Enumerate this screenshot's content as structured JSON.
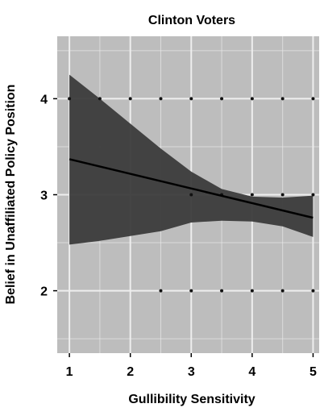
{
  "chart_data": {
    "type": "line",
    "title": "Clinton Voters",
    "xlabel": "Gullibility Sensitivity",
    "ylabel": "Belief in Unaffiliated Policy Position",
    "xlim": [
      0.8,
      5.1
    ],
    "ylim": [
      1.35,
      4.65
    ],
    "x_ticks": [
      "1",
      "2",
      "3",
      "4",
      "5"
    ],
    "y_ticks": [
      "2",
      "3",
      "4"
    ],
    "grid": true,
    "series": [
      {
        "type": "line",
        "x": [
          1,
          5
        ],
        "values": [
          3.37,
          2.76
        ]
      }
    ],
    "confidence_band": {
      "x": [
        1,
        1.5,
        2,
        2.5,
        3,
        3.5,
        4,
        4.5,
        5
      ],
      "upper": [
        4.25,
        4.0,
        3.74,
        3.48,
        3.24,
        3.06,
        2.98,
        2.97,
        2.99
      ],
      "lower": [
        2.48,
        2.52,
        2.57,
        2.62,
        2.71,
        2.73,
        2.72,
        2.67,
        2.56
      ]
    },
    "points": [
      {
        "x": 1,
        "y": 4
      },
      {
        "x": 1.5,
        "y": 4
      },
      {
        "x": 2,
        "y": 4
      },
      {
        "x": 2.5,
        "y": 4
      },
      {
        "x": 3,
        "y": 4
      },
      {
        "x": 3.5,
        "y": 4
      },
      {
        "x": 4,
        "y": 4
      },
      {
        "x": 4.5,
        "y": 4
      },
      {
        "x": 5,
        "y": 4
      },
      {
        "x": 3,
        "y": 3
      },
      {
        "x": 3.5,
        "y": 3
      },
      {
        "x": 4,
        "y": 3
      },
      {
        "x": 4.5,
        "y": 3
      },
      {
        "x": 5,
        "y": 3
      },
      {
        "x": 2.5,
        "y": 2
      },
      {
        "x": 3,
        "y": 2
      },
      {
        "x": 3.5,
        "y": 2
      },
      {
        "x": 4,
        "y": 2
      },
      {
        "x": 4.5,
        "y": 2
      },
      {
        "x": 5,
        "y": 2
      }
    ],
    "colors": {
      "panel": "#bdbdbd",
      "grid": "#eeeeee",
      "band": "#3b3b3b",
      "line": "#000000",
      "point": "#111111"
    }
  }
}
